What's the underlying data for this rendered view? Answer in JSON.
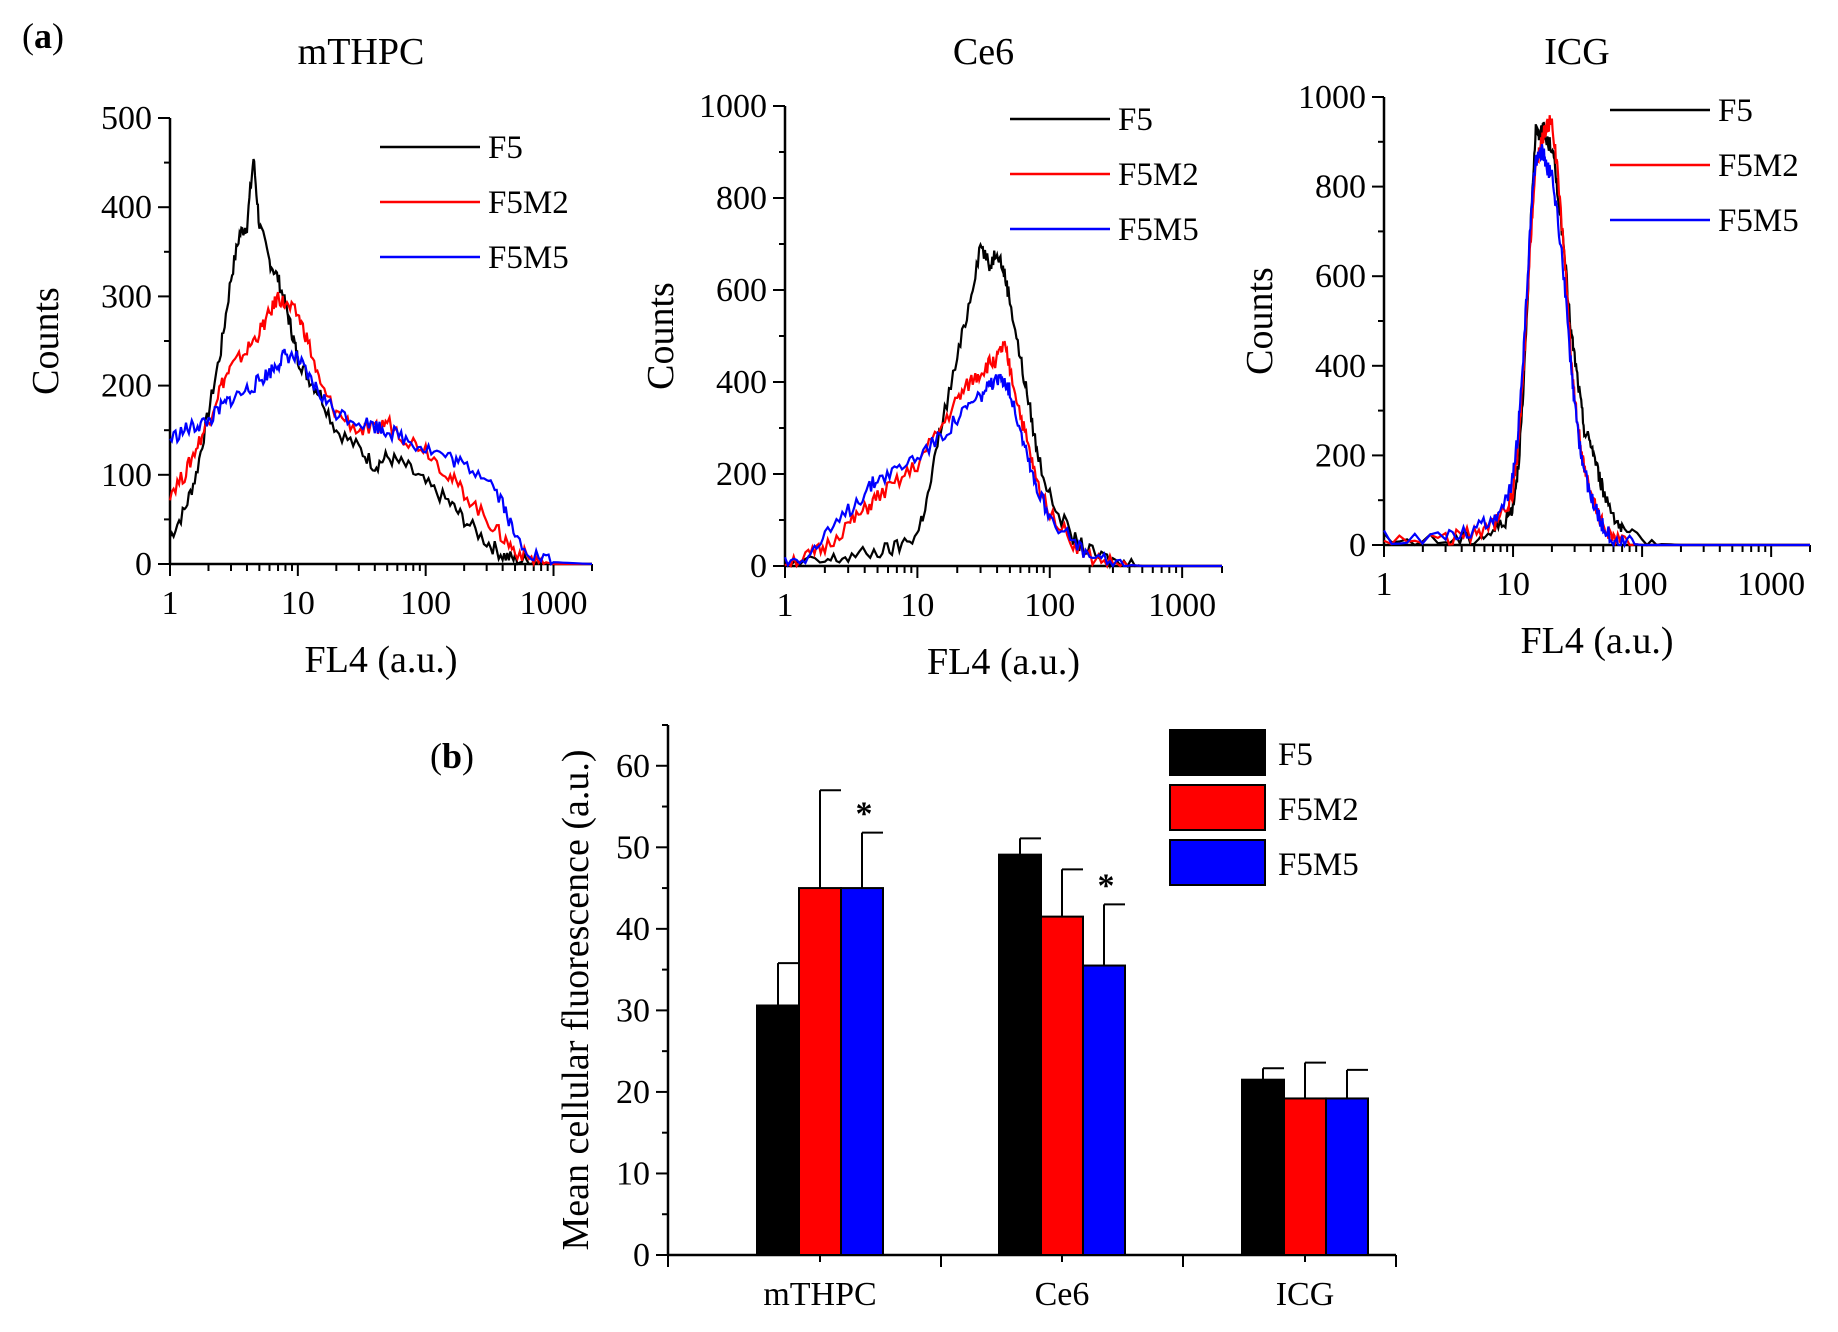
{
  "panel_tags": {
    "a": "a",
    "b": "b"
  },
  "colors": {
    "F5": "#000000",
    "F5M2": "#ff0000",
    "F5M5": "#0000ff"
  },
  "chart_data": [
    {
      "type": "line",
      "title": "mTHPC",
      "xlabel": "FL4 (a.u.)",
      "ylabel": "Counts",
      "xscale": "log",
      "xlim": [
        1,
        2000
      ],
      "ylim": [
        0,
        500
      ],
      "xticks": [
        1,
        10,
        100,
        1000
      ],
      "xtick_labels": [
        "1",
        "10",
        "100",
        "1000"
      ],
      "yticks": [
        0,
        100,
        200,
        300,
        400,
        500
      ],
      "ytick_labels": [
        "0",
        "100",
        "200",
        "300",
        "400",
        "500"
      ],
      "legend": "top-right",
      "series": [
        {
          "name": "F5",
          "x": [
            1,
            1.3,
            1.6,
            2,
            2.5,
            3,
            3.5,
            4,
            4.5,
            5,
            6,
            7,
            8,
            9,
            10,
            12,
            15,
            20,
            30,
            40,
            50,
            70,
            100,
            150,
            200,
            300,
            400,
            500,
            700,
            1000,
            2000
          ],
          "y": [
            30,
            60,
            100,
            170,
            240,
            320,
            370,
            380,
            455,
            380,
            340,
            320,
            290,
            260,
            230,
            210,
            190,
            150,
            130,
            110,
            120,
            110,
            90,
            70,
            50,
            25,
            10,
            5,
            2,
            0,
            0
          ]
        },
        {
          "name": "F5M2",
          "x": [
            1,
            1.3,
            1.6,
            2,
            2.5,
            3,
            4,
            5,
            6,
            7,
            8,
            10,
            12,
            15,
            20,
            30,
            40,
            50,
            70,
            100,
            150,
            200,
            300,
            400,
            500,
            700,
            1000,
            2000
          ],
          "y": [
            80,
            100,
            130,
            160,
            200,
            220,
            240,
            260,
            280,
            300,
            290,
            280,
            250,
            200,
            170,
            150,
            150,
            160,
            140,
            130,
            100,
            80,
            50,
            30,
            15,
            5,
            0,
            0
          ]
        },
        {
          "name": "F5M5",
          "x": [
            1,
            1.3,
            1.6,
            2,
            2.5,
            3,
            4,
            5,
            6,
            7,
            8,
            10,
            12,
            15,
            20,
            30,
            40,
            50,
            70,
            100,
            150,
            200,
            300,
            400,
            500,
            700,
            1000,
            2000
          ],
          "y": [
            140,
            150,
            155,
            160,
            175,
            185,
            195,
            205,
            215,
            225,
            235,
            230,
            210,
            190,
            170,
            160,
            155,
            150,
            140,
            130,
            120,
            110,
            100,
            70,
            30,
            10,
            2,
            0
          ]
        }
      ]
    },
    {
      "type": "line",
      "title": "Ce6",
      "xlabel": "FL4 (a.u.)",
      "ylabel": "Counts",
      "xscale": "log",
      "xlim": [
        1,
        2000
      ],
      "ylim": [
        0,
        1000
      ],
      "xticks": [
        1,
        10,
        100,
        1000
      ],
      "xtick_labels": [
        "1",
        "10",
        "100",
        "1000"
      ],
      "yticks": [
        0,
        200,
        400,
        600,
        800,
        1000
      ],
      "ytick_labels": [
        "0",
        "200",
        "400",
        "600",
        "800",
        "1000"
      ],
      "legend": "top-right",
      "series": [
        {
          "name": "F5",
          "x": [
            1,
            2,
            3,
            5,
            7,
            10,
            12,
            15,
            20,
            25,
            30,
            35,
            40,
            45,
            50,
            60,
            70,
            80,
            100,
            150,
            200,
            300,
            500,
            2000
          ],
          "y": [
            0,
            10,
            20,
            30,
            40,
            70,
            150,
            300,
            450,
            580,
            700,
            650,
            690,
            640,
            580,
            450,
            350,
            250,
            150,
            60,
            30,
            10,
            0,
            0
          ]
        },
        {
          "name": "F5M2",
          "x": [
            1,
            1.5,
            2,
            3,
            4,
            5,
            7,
            10,
            15,
            20,
            25,
            30,
            35,
            40,
            45,
            50,
            60,
            70,
            80,
            100,
            150,
            200,
            300,
            500,
            2000
          ],
          "y": [
            10,
            20,
            40,
            90,
            120,
            150,
            180,
            220,
            300,
            360,
            400,
            420,
            440,
            450,
            480,
            430,
            330,
            250,
            180,
            120,
            50,
            20,
            5,
            0,
            0
          ]
        },
        {
          "name": "F5M5",
          "x": [
            1,
            1.5,
            2,
            3,
            4,
            5,
            7,
            10,
            15,
            20,
            25,
            30,
            35,
            40,
            45,
            50,
            60,
            70,
            80,
            100,
            150,
            200,
            300,
            500,
            2000
          ],
          "y": [
            10,
            25,
            60,
            120,
            160,
            190,
            210,
            240,
            280,
            320,
            350,
            370,
            390,
            400,
            410,
            380,
            300,
            230,
            170,
            110,
            50,
            20,
            5,
            0,
            0
          ]
        }
      ]
    },
    {
      "type": "line",
      "title": "ICG",
      "xlabel": "FL4 (a.u.)",
      "ylabel": "Counts",
      "xscale": "log",
      "xlim": [
        1,
        2000
      ],
      "ylim": [
        0,
        1000
      ],
      "xticks": [
        1,
        10,
        100,
        1000
      ],
      "xtick_labels": [
        "1",
        "10",
        "100",
        "1000"
      ],
      "yticks": [
        0,
        200,
        400,
        600,
        800,
        1000
      ],
      "ytick_labels": [
        "0",
        "200",
        "400",
        "600",
        "800",
        "1000"
      ],
      "legend": "top-right",
      "series": [
        {
          "name": "F5",
          "x": [
            1,
            3,
            5,
            7,
            9,
            10,
            11,
            12,
            13,
            14,
            15,
            16,
            17,
            18,
            20,
            22,
            25,
            28,
            30,
            33,
            36,
            40,
            45,
            50,
            60,
            70,
            100,
            200,
            2000
          ],
          "y": [
            10,
            10,
            15,
            30,
            60,
            90,
            180,
            330,
            560,
            780,
            930,
            910,
            940,
            900,
            890,
            800,
            650,
            480,
            420,
            330,
            250,
            230,
            170,
            120,
            70,
            30,
            5,
            0,
            0
          ]
        },
        {
          "name": "F5M2",
          "x": [
            1,
            3,
            5,
            7,
            9,
            10,
            11,
            12,
            13,
            14,
            15,
            16,
            17,
            18,
            20,
            22,
            25,
            28,
            30,
            33,
            36,
            40,
            45,
            50,
            60,
            70,
            100,
            200,
            2000
          ],
          "y": [
            10,
            15,
            25,
            45,
            80,
            120,
            220,
            380,
            560,
            730,
            840,
            880,
            910,
            930,
            950,
            840,
            650,
            430,
            330,
            230,
            160,
            110,
            70,
            40,
            15,
            5,
            0,
            0,
            0
          ]
        },
        {
          "name": "F5M5",
          "x": [
            1,
            3,
            5,
            7,
            9,
            10,
            11,
            12,
            13,
            14,
            15,
            16,
            17,
            18,
            20,
            22,
            25,
            28,
            30,
            33,
            36,
            40,
            45,
            50,
            60,
            70,
            100,
            200,
            2000
          ],
          "y": [
            15,
            20,
            35,
            60,
            100,
            150,
            260,
            420,
            600,
            770,
            860,
            870,
            880,
            850,
            820,
            740,
            590,
            400,
            310,
            220,
            160,
            110,
            70,
            40,
            15,
            5,
            0,
            0,
            0
          ]
        }
      ]
    },
    {
      "type": "bar",
      "title": "",
      "xlabel": "",
      "ylabel": "Mean cellular fluorescence (a.u.)",
      "ylim": [
        0,
        65
      ],
      "yticks": [
        0,
        10,
        20,
        30,
        40,
        50,
        60
      ],
      "ytick_labels": [
        "0",
        "10",
        "20",
        "30",
        "40",
        "50",
        "60"
      ],
      "categories": [
        "mTHPC",
        "Ce6",
        "ICG"
      ],
      "legend": "top-right",
      "series": [
        {
          "name": "F5",
          "values": [
            30.6,
            49.1,
            21.5
          ],
          "errors": [
            5.2,
            2.0,
            1.4
          ],
          "significance": [
            "",
            "",
            ""
          ]
        },
        {
          "name": "F5M2",
          "values": [
            45.0,
            41.5,
            19.2
          ],
          "errors": [
            12.0,
            5.8,
            4.4
          ],
          "significance": [
            "",
            "",
            ""
          ]
        },
        {
          "name": "F5M5",
          "values": [
            45.0,
            35.5,
            19.2
          ],
          "errors": [
            6.8,
            7.5,
            3.5
          ],
          "significance": [
            "*",
            "*",
            ""
          ]
        }
      ]
    }
  ]
}
